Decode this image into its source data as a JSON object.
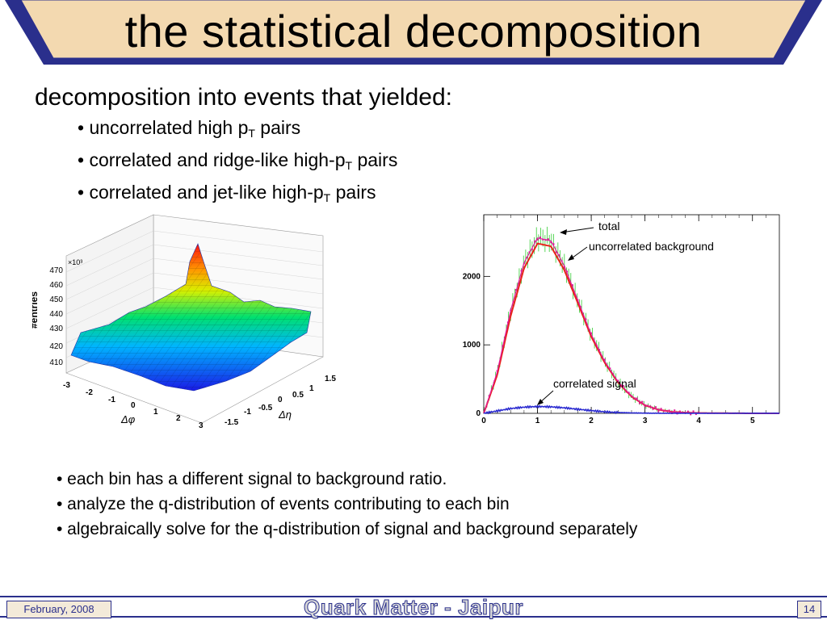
{
  "title": "the statistical decomposition",
  "intro": "decomposition into events that yielded:",
  "bullets_top": [
    {
      "pre": "• uncorrelated high p",
      "sub": "T",
      "post": " pairs"
    },
    {
      "pre": "• correlated and ridge-like high-p",
      "sub": "T",
      "post": " pairs"
    },
    {
      "pre": "• correlated and jet-like high-p",
      "sub": "T",
      "post": " pairs"
    }
  ],
  "bullets_bottom": [
    "• each bin has a different signal to background ratio.",
    "• analyze the q-distribution of events contributing to each bin",
    "• algebraically solve for the q-distribution of signal and background separately"
  ],
  "footer": {
    "date": "February, 2008",
    "conference": "Quark Matter - Jaipur",
    "page": "14"
  },
  "colors": {
    "banner_fill": "#f3d9b0",
    "banner_border": "#2a2f8c",
    "total": "#e0189c",
    "uncorrelated": "#e8231a",
    "correlated": "#2a2ad0",
    "data_points": "#33cc33"
  },
  "chart_data": [
    {
      "type": "surface",
      "zlabel": "#entries",
      "zexponent": "×10³",
      "zticks": [
        "470",
        "460",
        "450",
        "440",
        "430",
        "420",
        "410"
      ],
      "xlabel": "Δφ",
      "xticks": [
        "-3",
        "-2",
        "-1",
        "0",
        "1",
        "2",
        "3"
      ],
      "ylabel": "Δη",
      "yticks": [
        "-1.5",
        "-1",
        "-0.5",
        "0",
        "0.5",
        "1",
        "1.5"
      ],
      "grid": true
    },
    {
      "type": "line",
      "xticks": [
        "0",
        "1",
        "2",
        "3",
        "4",
        "5"
      ],
      "yticks": [
        "0",
        "1000",
        "2000"
      ],
      "xlim": [
        0,
        5.5
      ],
      "ylim": [
        0,
        2900
      ],
      "series": [
        {
          "name": "total",
          "x": [
            0,
            0.25,
            0.5,
            0.75,
            1.0,
            1.25,
            1.5,
            1.75,
            2.0,
            2.25,
            2.5,
            2.75,
            3.0,
            3.25,
            3.5,
            3.75,
            4.0,
            4.5,
            5.0,
            5.5
          ],
          "y": [
            0,
            600,
            1500,
            2200,
            2560,
            2520,
            2150,
            1650,
            1150,
            760,
            460,
            250,
            120,
            55,
            22,
            10,
            5,
            2,
            0,
            0
          ]
        },
        {
          "name": "uncorrelated background",
          "x": [
            0,
            0.25,
            0.5,
            0.75,
            1.0,
            1.25,
            1.5,
            1.75,
            2.0,
            2.25,
            2.5,
            2.75,
            3.0,
            3.25,
            3.5,
            3.75,
            4.0,
            4.5,
            5.0,
            5.5
          ],
          "y": [
            0,
            560,
            1420,
            2120,
            2480,
            2440,
            2090,
            1610,
            1120,
            740,
            450,
            245,
            118,
            54,
            22,
            10,
            5,
            2,
            0,
            0
          ]
        },
        {
          "name": "correlated signal",
          "x": [
            0,
            0.25,
            0.5,
            0.75,
            1.0,
            1.25,
            1.5,
            1.75,
            2.0,
            2.25,
            2.5,
            2.75,
            3.0,
            3.25,
            3.5,
            3.75,
            4.0,
            4.5,
            5.0,
            5.5
          ],
          "y": [
            0,
            35,
            70,
            90,
            100,
            95,
            80,
            60,
            40,
            22,
            12,
            6,
            3,
            1,
            0,
            0,
            0,
            0,
            0,
            0
          ]
        }
      ]
    }
  ]
}
